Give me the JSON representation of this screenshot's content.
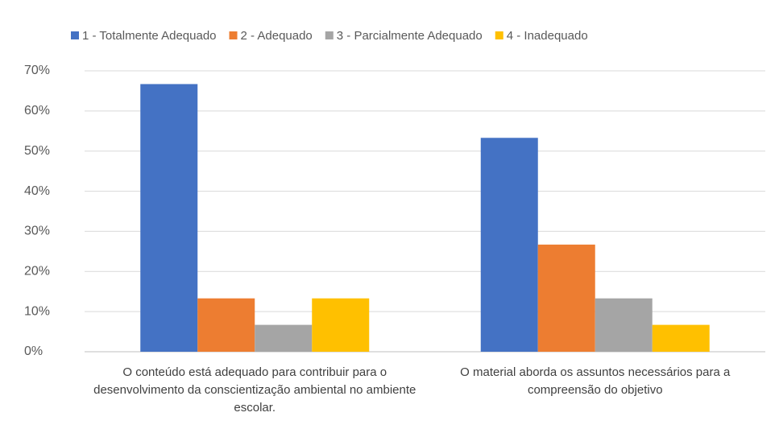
{
  "chart_data": {
    "type": "bar",
    "categories": [
      "O conteúdo está adequado para contribuir para o desenvolvimento da conscientização ambiental no ambiente escolar.",
      "O material aborda os assuntos necessários para a compreensão do objetivo"
    ],
    "series": [
      {
        "name": "1 - Totalmente Adequado",
        "color": "#4472c4",
        "values": [
          66.7,
          53.3
        ]
      },
      {
        "name": "2 - Adequado",
        "color": "#ed7d31",
        "values": [
          13.3,
          26.7
        ]
      },
      {
        "name": "3 - Parcialmente Adequado",
        "color": "#a5a5a5",
        "values": [
          6.7,
          13.3
        ]
      },
      {
        "name": "4 - Inadequado",
        "color": "#ffc000",
        "values": [
          13.3,
          6.7
        ]
      }
    ],
    "ylim": [
      0,
      70
    ],
    "yticks": [
      {
        "value": 0,
        "label": "0%"
      },
      {
        "value": 10,
        "label": "10%"
      },
      {
        "value": 20,
        "label": "20%"
      },
      {
        "value": 30,
        "label": "30%"
      },
      {
        "value": 40,
        "label": "40%"
      },
      {
        "value": 50,
        "label": "50%"
      },
      {
        "value": 60,
        "label": "60%"
      },
      {
        "value": 70,
        "label": "70%"
      }
    ],
    "grid": true,
    "legend": "top"
  }
}
